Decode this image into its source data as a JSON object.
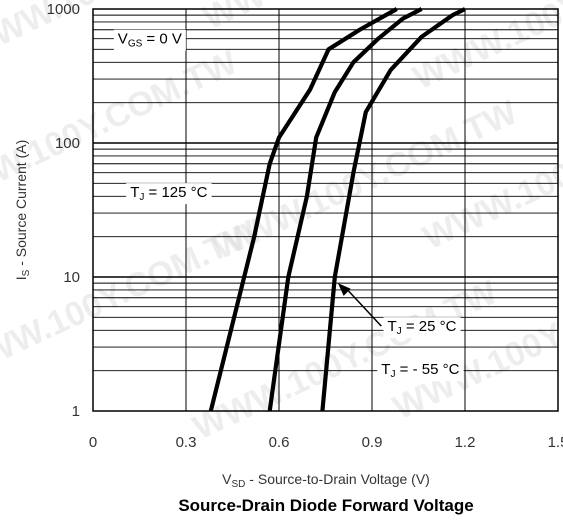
{
  "chart_data": {
    "type": "line",
    "title": "Source-Drain Diode Forward Voltage",
    "xlabel": {
      "sym": "V",
      "sub": "SD",
      "rest": " - Source-to-Drain Voltage (V)"
    },
    "ylabel": {
      "sym": "I",
      "sub": "S",
      "rest": " - Source Current (A)"
    },
    "xlim": [
      0,
      1.5
    ],
    "ylim": [
      1,
      1000
    ],
    "yscale": "log",
    "xticks": [
      0,
      0.3,
      0.6,
      0.9,
      1.2,
      1.5
    ],
    "xtick_labels": [
      "0",
      "0.3",
      "0.6",
      "0.9",
      "1.2",
      "1.5"
    ],
    "yticks": [
      1,
      10,
      100,
      1000
    ],
    "ytick_labels": [
      "1",
      "10",
      "100",
      "1000"
    ],
    "grid": true,
    "series": [
      {
        "points": [
          [
            0.38,
            1
          ],
          [
            0.52,
            20
          ],
          [
            0.57,
            70
          ],
          [
            0.6,
            110
          ],
          [
            0.7,
            250
          ],
          [
            0.76,
            500
          ],
          [
            0.86,
            700
          ],
          [
            0.98,
            1000
          ]
        ]
      },
      {
        "points": [
          [
            0.57,
            1
          ],
          [
            0.63,
            10
          ],
          [
            0.69,
            40
          ],
          [
            0.72,
            110
          ],
          [
            0.78,
            240
          ],
          [
            0.84,
            400
          ],
          [
            0.92,
            600
          ],
          [
            1.0,
            850
          ],
          [
            1.06,
            1000
          ]
        ]
      },
      {
        "points": [
          [
            0.74,
            1
          ],
          [
            0.78,
            10
          ],
          [
            0.84,
            60
          ],
          [
            0.88,
            170
          ],
          [
            0.96,
            350
          ],
          [
            1.06,
            620
          ],
          [
            1.16,
            900
          ],
          [
            1.2,
            1000
          ]
        ]
      }
    ],
    "annotations": [
      {
        "id": "vgs",
        "sym": "V",
        "sub": "GS",
        "rest": " = 0 V",
        "x": 0.08,
        "y": 600
      },
      {
        "id": "tj125",
        "sym": "T",
        "sub": "J",
        "rest": " = 125 °C",
        "x": 0.12,
        "y": 43
      },
      {
        "id": "tj25",
        "sym": "T",
        "sub": "J",
        "rest": " = 25 °C",
        "x": 0.95,
        "y": 4.3
      },
      {
        "id": "tj55",
        "sym": "T",
        "sub": "J",
        "rest": " = - 55 °C",
        "x": 0.93,
        "y": 2.05
      }
    ],
    "arrow": {
      "from": [
        0.93,
        4.3
      ],
      "to": [
        0.79,
        9
      ]
    }
  },
  "watermarks": [
    "WWW.100Y.COM.TW",
    "WWW.100Y.COM.TW",
    "WWW.100Y.COM.TW",
    "WWW.100Y.COM.TW",
    "WWW.100Y.COM.TW",
    "WWW.100Y.COM.TW",
    "WWW.100Y.COM.TW",
    "WWW.100Y.COM.TW",
    "WWW.100Y.COM.TW"
  ]
}
